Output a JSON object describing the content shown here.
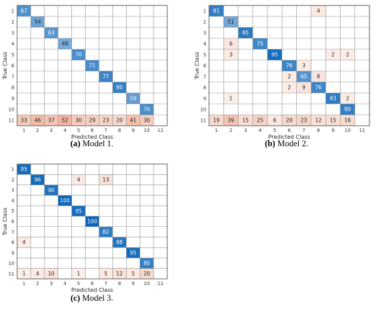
{
  "chart_data": [
    {
      "type": "heatmap",
      "caption_label": "(a)",
      "caption_text": "Model 1.",
      "xlabel": "Predicted Class",
      "ylabel": "True Class",
      "x_ticks": [
        "1",
        "2",
        "3",
        "4",
        "5",
        "6",
        "7",
        "8",
        "9",
        "10",
        "11"
      ],
      "y_ticks": [
        "1",
        "2",
        "3",
        "4",
        "5",
        "6",
        "7",
        "8",
        "9",
        "10",
        "11"
      ],
      "cells": [
        [
          1,
          1,
          67
        ],
        [
          2,
          2,
          54
        ],
        [
          3,
          3,
          63
        ],
        [
          4,
          4,
          48
        ],
        [
          5,
          5,
          70
        ],
        [
          6,
          6,
          71
        ],
        [
          7,
          7,
          77
        ],
        [
          8,
          8,
          80
        ],
        [
          9,
          9,
          59
        ],
        [
          10,
          10,
          70
        ],
        [
          11,
          1,
          33
        ],
        [
          11,
          2,
          46
        ],
        [
          11,
          3,
          37
        ],
        [
          11,
          4,
          52
        ],
        [
          11,
          5,
          30
        ],
        [
          11,
          6,
          29
        ],
        [
          11,
          7,
          23
        ],
        [
          11,
          8,
          20
        ],
        [
          11,
          9,
          41
        ],
        [
          11,
          10,
          30
        ]
      ]
    },
    {
      "type": "heatmap",
      "caption_label": "(b)",
      "caption_text": "Model 2.",
      "xlabel": "Predicted Class",
      "ylabel": "True Class",
      "x_ticks": [
        "1",
        "2",
        "3",
        "4",
        "5",
        "6",
        "7",
        "8",
        "9",
        "10",
        "11"
      ],
      "y_ticks": [
        "1",
        "2",
        "3",
        "4",
        "5",
        "6",
        "7",
        "8",
        "9",
        "10",
        "11"
      ],
      "cells": [
        [
          1,
          1,
          81
        ],
        [
          1,
          8,
          4
        ],
        [
          2,
          2,
          51
        ],
        [
          3,
          3,
          85
        ],
        [
          4,
          2,
          6
        ],
        [
          4,
          4,
          75
        ],
        [
          5,
          2,
          3
        ],
        [
          5,
          5,
          95
        ],
        [
          5,
          9,
          2
        ],
        [
          5,
          10,
          2
        ],
        [
          6,
          6,
          76
        ],
        [
          6,
          7,
          3
        ],
        [
          7,
          6,
          2
        ],
        [
          7,
          7,
          65
        ],
        [
          7,
          8,
          8
        ],
        [
          8,
          6,
          2
        ],
        [
          8,
          7,
          9
        ],
        [
          8,
          8,
          76
        ],
        [
          9,
          2,
          1
        ],
        [
          9,
          9,
          83
        ],
        [
          9,
          10,
          2
        ],
        [
          10,
          10,
          80
        ],
        [
          11,
          1,
          19
        ],
        [
          11,
          2,
          39
        ],
        [
          11,
          3,
          15
        ],
        [
          11,
          4,
          25
        ],
        [
          11,
          5,
          6
        ],
        [
          11,
          6,
          20
        ],
        [
          11,
          7,
          23
        ],
        [
          11,
          8,
          12
        ],
        [
          11,
          9,
          15
        ],
        [
          11,
          10,
          16
        ]
      ]
    },
    {
      "type": "heatmap",
      "caption_label": "(c)",
      "caption_text": "Model 3.",
      "xlabel": "Predicted Class",
      "ylabel": "True Class",
      "x_ticks": [
        "1",
        "2",
        "3",
        "4",
        "5",
        "6",
        "7",
        "8",
        "9",
        "10",
        "11"
      ],
      "y_ticks": [
        "1",
        "2",
        "3",
        "4",
        "5",
        "6",
        "7",
        "8",
        "9",
        "10",
        "11"
      ],
      "cells": [
        [
          1,
          1,
          95
        ],
        [
          2,
          2,
          96
        ],
        [
          2,
          5,
          4
        ],
        [
          2,
          7,
          13
        ],
        [
          3,
          3,
          90
        ],
        [
          4,
          4,
          100
        ],
        [
          5,
          5,
          95
        ],
        [
          6,
          6,
          100
        ],
        [
          7,
          7,
          82
        ],
        [
          8,
          1,
          4
        ],
        [
          8,
          8,
          88
        ],
        [
          9,
          9,
          95
        ],
        [
          10,
          10,
          80
        ],
        [
          11,
          1,
          1
        ],
        [
          11,
          2,
          4
        ],
        [
          11,
          3,
          10
        ],
        [
          11,
          5,
          1
        ],
        [
          11,
          7,
          5
        ],
        [
          11,
          8,
          12
        ],
        [
          11,
          9,
          5
        ],
        [
          11,
          10,
          20
        ]
      ]
    }
  ],
  "colors": {
    "correct_light": "#dfeaf6",
    "correct_dark": "#0b66b8",
    "error_light": "#fcefe9",
    "error_dark": "#e3805c",
    "grid": "#8c8c8c",
    "frame": "#555555"
  }
}
